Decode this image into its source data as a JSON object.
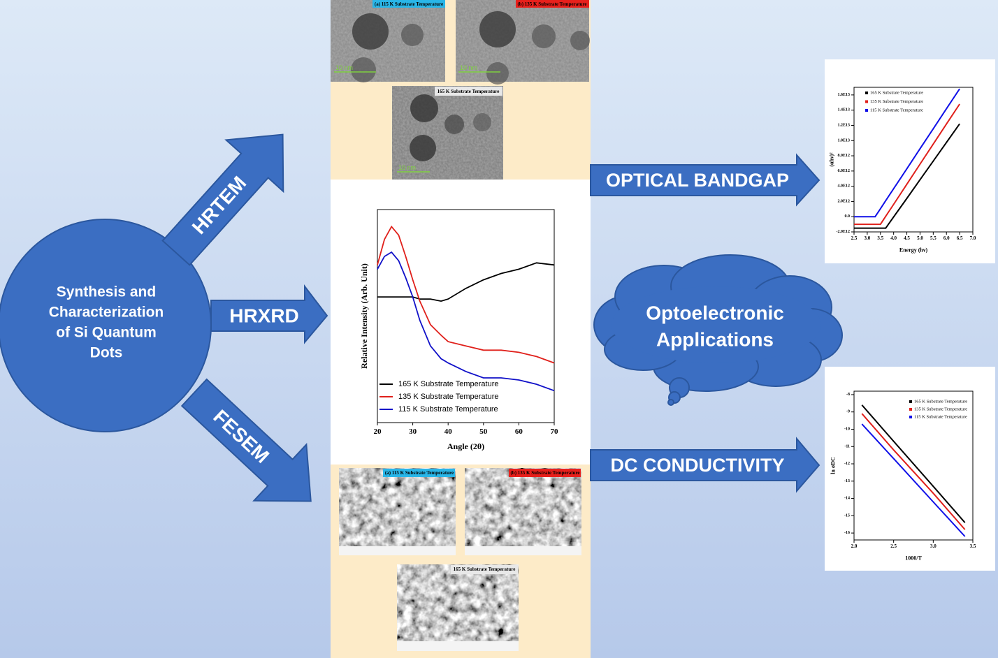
{
  "center": {
    "lines": [
      "Synthesis and",
      "Characterization",
      "of Si Quantum",
      "Dots"
    ]
  },
  "arrows": [
    "HRTEM",
    "HRXRD",
    "FESEM"
  ],
  "outputs": {
    "bandgap": "OPTICAL BANDGAP",
    "cloud": [
      "Optoelectronic",
      "Applications"
    ],
    "conductivity": "DC CONDUCTIVITY"
  },
  "hrtem": {
    "panels": [
      "(a) 115 K Substrate Temperature",
      "(b) 135 K Substrate Temperature",
      "165 K Substrate Temperature"
    ],
    "scale_bars": [
      "10 nm",
      "10 nm",
      "10 nm"
    ]
  },
  "fesem": {
    "panels": [
      "(a) 115 K Substrate Temperature",
      "(b) 135 K Substrate Temperature",
      "165 K Substrate Temperature"
    ]
  },
  "xrd_chart": {
    "type": "line",
    "xlabel": "Angle (2θ)",
    "ylabel": "Relative Intensity (Arb. Unit)",
    "x": [
      20,
      22,
      24,
      26,
      28,
      30,
      32,
      35,
      38,
      40,
      45,
      50,
      55,
      60,
      65,
      70
    ],
    "series": [
      {
        "name": "165 K Substrate Temperature",
        "color": "#000000",
        "values": [
          59,
          59,
          59,
          59,
          59,
          59,
          58,
          58,
          57,
          58,
          63,
          67,
          70,
          72,
          75,
          74
        ]
      },
      {
        "name": "135 K Substrate Temperature",
        "color": "#e0201b",
        "values": [
          74,
          86,
          92,
          88,
          78,
          67,
          57,
          46,
          41,
          38,
          36,
          34,
          34,
          33,
          31,
          28
        ]
      },
      {
        "name": "115 K Substrate Temperature",
        "color": "#1010c8",
        "values": [
          72,
          78,
          80,
          76,
          68,
          59,
          48,
          36,
          30,
          28,
          24,
          21,
          21,
          20,
          18,
          15
        ]
      }
    ],
    "xlim": [
      20,
      70
    ],
    "xticks": [
      20,
      30,
      40,
      50,
      60,
      70
    ],
    "ylim": [
      0,
      100
    ]
  },
  "bandgap_chart": {
    "type": "line",
    "xlabel": "Energy (hν)",
    "ylabel": "(αhν)²",
    "x": [
      2.5,
      3.0,
      3.3,
      3.5,
      3.7,
      4.0,
      4.5,
      5.0,
      5.5,
      6.0,
      6.5
    ],
    "series": [
      {
        "name": "165 K Substrate Temperature",
        "color": "#000000",
        "values": [
          -1500000000000.0,
          -1500000000000.0,
          -1500000000000.0,
          -1500000000000.0,
          -1500000000000.0,
          -30000000000.0,
          2410000000000.0,
          4860000000000.0,
          7300000000000.0,
          9750000000000.0,
          12200000000000.0
        ]
      },
      {
        "name": "135 K Substrate Temperature",
        "color": "#e0201b",
        "values": [
          -1000000000000.0,
          -1000000000000.0,
          -1000000000000.0,
          -1000000000000.0,
          50000000000.0,
          1630000000000.0,
          4270000000000.0,
          6900000000000.0,
          9540000000000.0,
          12170000000000.0,
          14800000000000.0
        ]
      },
      {
        "name": "115 K Substrate Temperature",
        "color": "#1010e8",
        "values": [
          0,
          0,
          0,
          1050000000000.0,
          2100000000000.0,
          3680000000000.0,
          6300000000000.0,
          8930000000000.0,
          11550000000000.0,
          14180000000000.0,
          16800000000000.0
        ]
      }
    ],
    "xlim": [
      2.5,
      7.0
    ],
    "xticks": [
      2.5,
      {
        "value": 3,
        "label": "3.0"
      },
      3.5,
      {
        "value": 4,
        "label": "4.0"
      },
      4.5,
      {
        "value": 5,
        "label": "5.0"
      },
      5.5,
      {
        "value": 6,
        "label": "6.0"
      },
      6.5,
      {
        "value": 7,
        "label": "7.0"
      }
    ],
    "ylim": [
      -2000000000000.0,
      17000000000000.0
    ],
    "yticks": [
      {
        "value": -2000000000000.0,
        "label": "-2.0E12"
      },
      {
        "value": 0,
        "label": "0.0"
      },
      {
        "value": 2000000000000.0,
        "label": "2.0E12"
      },
      {
        "value": 4000000000000.0,
        "label": "4.0E12"
      },
      {
        "value": 6000000000000.0,
        "label": "6.0E12"
      },
      {
        "value": 8000000000000.0,
        "label": "8.0E12"
      },
      {
        "value": 10000000000000.0,
        "label": "1.0E13"
      },
      {
        "value": 12000000000000.0,
        "label": "1.2E13"
      },
      {
        "value": 14000000000000.0,
        "label": "1.4E13"
      },
      {
        "value": 16000000000000.0,
        "label": "1.6E13"
      }
    ]
  },
  "dc_chart": {
    "type": "line",
    "xlabel": "1000/T",
    "ylabel": "ln σDC",
    "x": [
      2.1,
      2.5,
      3.0,
      3.4
    ],
    "series": [
      {
        "name": "165 K Substrate Temperature",
        "color": "#000000",
        "values": [
          -8.6,
          -10.7,
          -13.3,
          -15.4
        ]
      },
      {
        "name": "135 K Substrate Temperature",
        "color": "#e0201b",
        "values": [
          -9.1,
          -11.2,
          -13.7,
          -15.8
        ]
      },
      {
        "name": "115 K Substrate Temperature",
        "color": "#1010e8",
        "values": [
          -9.7,
          -11.7,
          -14.2,
          -16.2
        ]
      }
    ],
    "xlim": [
      2.0,
      3.5
    ],
    "xticks": [
      {
        "value": 2,
        "label": "2.0"
      },
      2.5,
      {
        "value": 3,
        "label": "3.0"
      },
      3.5
    ],
    "ylim": [
      -16.4,
      -7.8
    ],
    "yticks": [
      -8,
      -9,
      -10,
      -11,
      -12,
      -13,
      -14,
      -15,
      -16
    ]
  }
}
